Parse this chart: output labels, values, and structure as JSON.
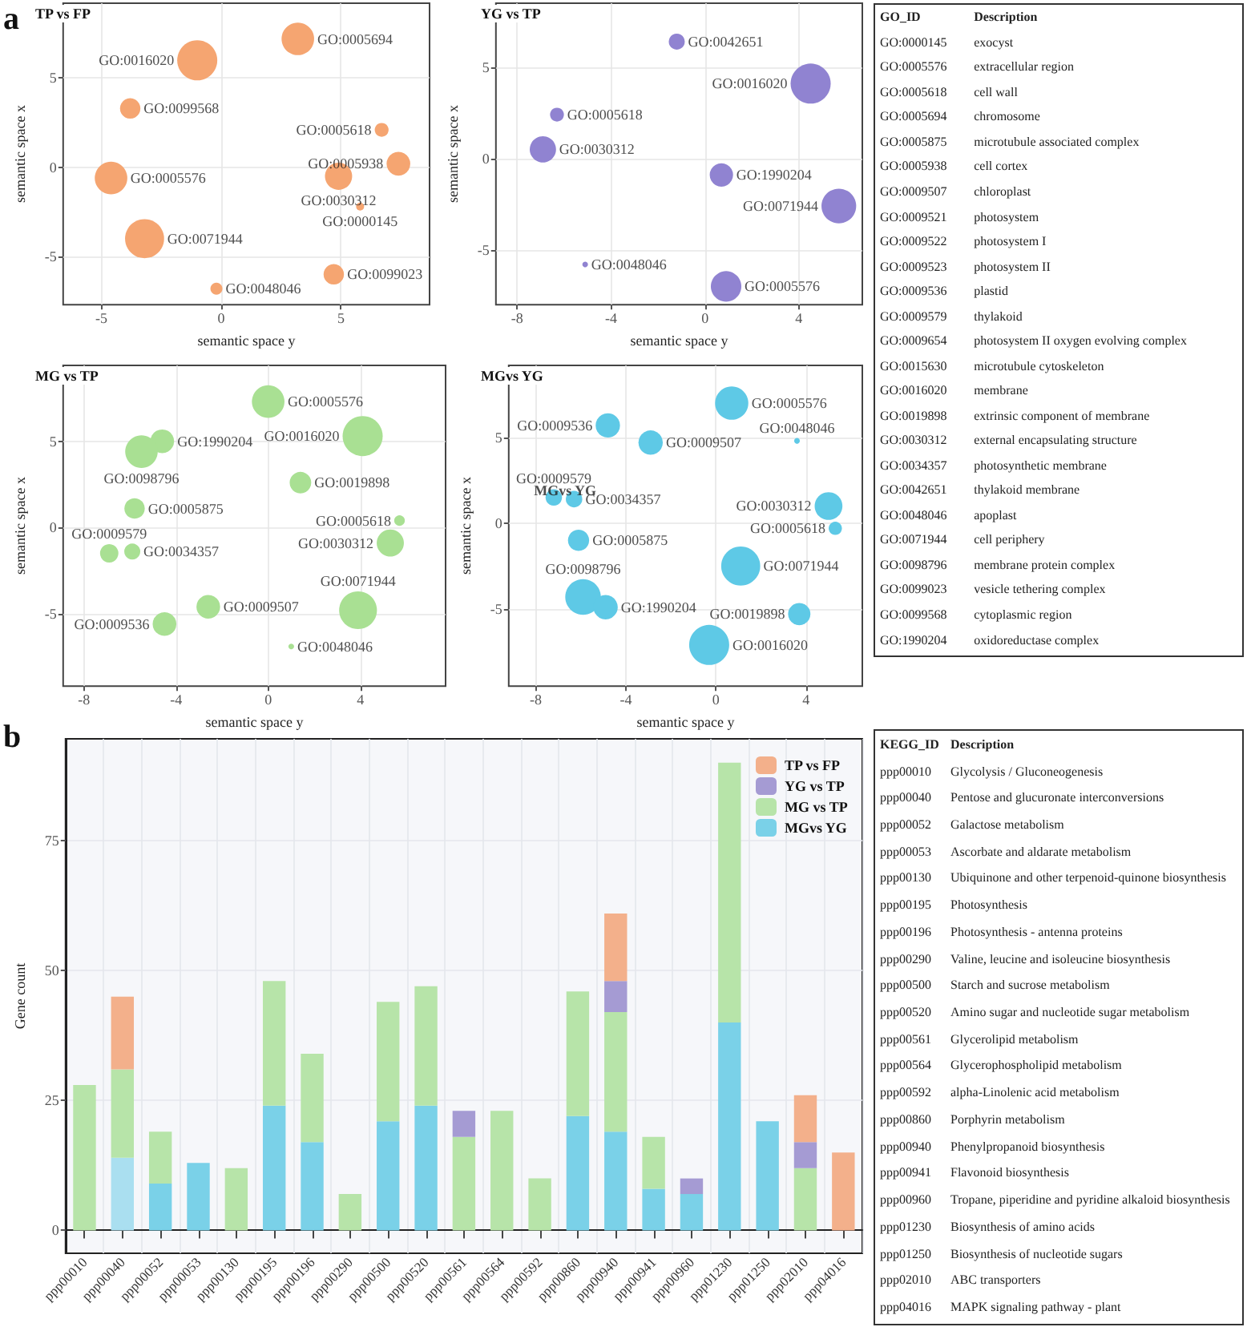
{
  "chart_data": [
    {
      "type": "bubble",
      "title": "TP vs FP",
      "xlabel": "semantic space y",
      "ylabel": "semantic space x",
      "color": "#f5a571",
      "grid": true,
      "x": [
        3.2,
        -1.0,
        -3.8,
        6.7,
        7.4,
        4.9,
        5.8,
        -4.6,
        -3.2,
        4.7,
        -0.2
      ],
      "values": [
        7.2,
        6.0,
        3.3,
        2.1,
        0.2,
        -0.5,
        -2.2,
        -0.6,
        -4.0,
        -6.0,
        -6.8
      ],
      "sizes": [
        0.66,
        1,
        0.26,
        0.12,
        0.35,
        0.46,
        0.04,
        0.66,
        0.95,
        0.26,
        0.09
      ],
      "xlim": [
        -6.6,
        8.7
      ],
      "ylim": [
        -7.7,
        9.2
      ],
      "xticks": [
        -5,
        0,
        5
      ],
      "yticks": [
        -5,
        0,
        5
      ],
      "annotations": [
        "a",
        {
          "text": "GO:0005694",
          "x": 3.2,
          "y": 7.2
        },
        {
          "text": "GO:0016020",
          "x": -1.0,
          "y": 6.0
        },
        {
          "text": "GO:0099568",
          "x": -3.8,
          "y": 3.3
        },
        {
          "text": "GO:0005618",
          "x": 6.7,
          "y": 2.1
        },
        {
          "text": "GO:0005938",
          "x": 7.4,
          "y": 0.2
        },
        {
          "text": "GO:0030312",
          "x": 4.9,
          "y": -0.5
        },
        {
          "text": "GO:0000145",
          "x": 5.8,
          "y": -2.2
        },
        {
          "text": "GO:0005576",
          "x": -4.6,
          "y": -0.6
        },
        {
          "text": "GO:0071944",
          "x": -3.2,
          "y": -4.0
        },
        {
          "text": "GO:0099023",
          "x": 4.7,
          "y": -6.0
        },
        {
          "text": "GO:0048046",
          "x": -0.2,
          "y": -6.8
        }
      ]
    },
    {
      "type": "bubble",
      "title": "YG vs TP",
      "xlabel": "semantic space y",
      "ylabel": "semantic space x",
      "color": "#9083d1",
      "grid": true,
      "x": [
        -1.2,
        4.5,
        -6.3,
        -6.9,
        0.7,
        5.7,
        -5.1,
        0.9
      ],
      "values": [
        6.4,
        4.1,
        2.4,
        0.5,
        -0.9,
        -2.6,
        -5.8,
        -7.0
      ],
      "sizes": [
        0.16,
        1,
        0.12,
        0.43,
        0.34,
        0.75,
        0.02,
        0.58
      ],
      "xlim": [
        -8.9,
        6.7
      ],
      "ylim": [
        -8.0,
        8.5
      ],
      "xticks": [
        -8,
        -4,
        0,
        4
      ],
      "yticks": [
        -5,
        0,
        5
      ],
      "annotations": [
        {
          "text": "GO:0042651",
          "x": -1.2,
          "y": 6.4
        },
        {
          "text": "GO:0016020",
          "x": 4.5,
          "y": 4.1
        },
        {
          "text": "GO:0005618",
          "x": -6.3,
          "y": 2.4
        },
        {
          "text": "GO:0030312",
          "x": -6.9,
          "y": 0.5
        },
        {
          "text": "GO:1990204",
          "x": 0.7,
          "y": -0.9
        },
        {
          "text": "GO:0071944",
          "x": 5.7,
          "y": -2.6
        },
        {
          "text": "GO:0048046",
          "x": -5.1,
          "y": -5.8
        },
        {
          "text": "GO:0005576",
          "x": 0.9,
          "y": -7.0
        }
      ]
    },
    {
      "type": "bubble",
      "title": "MG vs TP",
      "xlabel": "semantic space y",
      "ylabel": "semantic space x",
      "color": "#a9e093",
      "grid": true,
      "x": [
        0.0,
        4.1,
        -4.6,
        -5.5,
        1.4,
        -5.8,
        5.7,
        5.3,
        -5.9,
        -6.9,
        -2.6,
        3.9,
        -4.5,
        1.0
      ],
      "values": [
        7.3,
        5.3,
        5.0,
        4.4,
        2.6,
        1.1,
        0.4,
        -0.9,
        -1.4,
        -1.5,
        -4.6,
        -4.8,
        -5.6,
        -6.9
      ],
      "sizes": [
        0.66,
        1,
        0.35,
        0.66,
        0.29,
        0.26,
        0.07,
        0.46,
        0.16,
        0.21,
        0.35,
        0.89,
        0.35,
        0.02
      ],
      "xlim": [
        -8.9,
        7.7
      ],
      "ylim": [
        -9.2,
        9.4
      ],
      "xticks": [
        -8,
        -4,
        0,
        4
      ],
      "yticks": [
        -5,
        0,
        5
      ],
      "annotations": [
        {
          "text": "GO:0005576",
          "x": 0.0,
          "y": 7.3
        },
        {
          "text": "GO:0016020",
          "x": 4.1,
          "y": 5.3
        },
        {
          "text": "GO:1990204",
          "x": -4.6,
          "y": 5.0
        },
        {
          "text": "GO:0098796",
          "x": -5.5,
          "y": 4.4
        },
        {
          "text": "GO:0019898",
          "x": 1.4,
          "y": 2.6
        },
        {
          "text": "GO:0005875",
          "x": -5.8,
          "y": 1.1
        },
        {
          "text": "GO:0005618",
          "x": 5.7,
          "y": 0.4
        },
        {
          "text": "GO:0030312",
          "x": 5.3,
          "y": -0.9
        },
        {
          "text": "GO:0034357",
          "x": -5.9,
          "y": -1.4
        },
        {
          "text": "GO:0009579",
          "x": -6.9,
          "y": -1.5
        },
        {
          "text": "GO:0009507",
          "x": -2.6,
          "y": -4.6
        },
        {
          "text": "GO:0071944",
          "x": 3.9,
          "y": -4.8
        },
        {
          "text": "GO:0009536",
          "x": -4.5,
          "y": -5.6
        },
        {
          "text": "GO:0048046",
          "x": 1.0,
          "y": -6.9
        }
      ]
    },
    {
      "type": "bubble",
      "title": "MGvs YG",
      "xlabel": "semantic space y",
      "ylabel": "semantic space x",
      "color": "#5ec9e6",
      "grid": true,
      "x": [
        0.7,
        -4.8,
        -2.9,
        3.6,
        -7.2,
        -6.3,
        -6.1,
        5.0,
        5.3,
        1.1,
        -5.9,
        -4.9,
        3.7,
        -0.3
      ],
      "values": [
        7.0,
        5.7,
        4.7,
        4.8,
        1.5,
        1.4,
        -1.0,
        1.0,
        -0.3,
        -2.5,
        -4.3,
        -4.9,
        -5.3,
        -7.1
      ],
      "sizes": [
        0.69,
        0.37,
        0.37,
        0.02,
        0.17,
        0.17,
        0.28,
        0.48,
        0.11,
        0.95,
        0.79,
        0.37,
        0.31,
        1
      ],
      "xlim": [
        -9.2,
        6.5
      ],
      "ylim": [
        -9.5,
        9.2
      ],
      "xticks": [
        -8,
        -4,
        0,
        4
      ],
      "yticks": [
        -5,
        0,
        5
      ],
      "annotations": [
        {
          "text": "GO:0005576",
          "x": 0.7,
          "y": 7.0
        },
        {
          "text": "GO:0009536",
          "x": -4.8,
          "y": 5.7
        },
        {
          "text": "GO:0009507",
          "x": -2.9,
          "y": 4.7
        },
        {
          "text": "GO:0048046",
          "x": 3.6,
          "y": 4.8
        },
        {
          "text": "GO:0009579",
          "x": -7.2,
          "y": 1.5
        },
        {
          "text": "GO:0034357",
          "x": -6.3,
          "y": 1.4
        },
        {
          "text": "GO:0005875",
          "x": -6.1,
          "y": -1.0
        },
        {
          "text": "GO:0030312",
          "x": 5.0,
          "y": 1.0
        },
        {
          "text": "GO:0005618",
          "x": 5.3,
          "y": -0.3
        },
        {
          "text": "GO:0071944",
          "x": 1.1,
          "y": -2.5
        },
        {
          "text": "GO:0098796",
          "x": -5.9,
          "y": -4.3
        },
        {
          "text": "GO:1990204",
          "x": -4.9,
          "y": -4.9
        },
        {
          "text": "GO:0019898",
          "x": 3.7,
          "y": -5.3
        },
        {
          "text": "GO:0016020",
          "x": -0.3,
          "y": -7.1
        },
        {
          "text": "MGvs YG",
          "x": -6.7,
          "y": 1.9
        }
      ]
    },
    {
      "type": "bar",
      "stacked": true,
      "ylabel": "Gene count",
      "grid": true,
      "legend": "top right",
      "categories": [
        "ppp00010",
        "ppp00040",
        "ppp00052",
        "ppp00053",
        "ppp00130",
        "ppp00195",
        "ppp00196",
        "ppp00290",
        "ppp00500",
        "ppp00520",
        "ppp00561",
        "ppp00564",
        "ppp00592",
        "ppp00860",
        "ppp00940",
        "ppp00941",
        "ppp00960",
        "ppp01230",
        "ppp01250",
        "ppp02010",
        "ppp04016"
      ],
      "ylim": [
        -4.4,
        94.6
      ],
      "yticks": [
        0,
        25,
        50,
        75
      ],
      "annotations": [
        "b"
      ],
      "series": [
        {
          "name": "MGvs YG",
          "color": "#7ad1e8",
          "colors": [
            "#7ad1e8",
            "#aadff0",
            "#7ad1e8",
            "#7ad1e8",
            "#7ad1e8",
            "#7ad1e8",
            "#7ad1e8",
            "#7ad1e8",
            "#7ad1e8",
            "#7ad1e8",
            "#7ad1e8",
            "#7ad1e8",
            "#7ad1e8",
            "#7ad1e8",
            "#7ad1e8",
            "#7ad1e8",
            "#7ad1e8",
            "#7ad1e8",
            "#7ad1e8",
            "#7ad1e8",
            "#7ad1e8"
          ],
          "values": [
            null,
            14,
            9,
            13,
            null,
            24,
            17,
            null,
            21,
            24,
            null,
            null,
            null,
            22,
            19,
            8,
            7,
            40,
            21,
            null,
            null
          ]
        },
        {
          "name": "MG vs TP",
          "color": "#b7e4a9",
          "values": [
            28,
            17,
            10,
            null,
            12,
            24,
            17,
            7,
            23,
            23,
            18,
            23,
            10,
            24,
            23,
            10,
            null,
            50,
            null,
            12,
            null
          ]
        },
        {
          "name": "YG vs TP",
          "color": "#a59bd3",
          "values": [
            null,
            null,
            null,
            null,
            null,
            null,
            null,
            null,
            null,
            null,
            5,
            null,
            null,
            null,
            6,
            null,
            3,
            null,
            null,
            5,
            null
          ]
        },
        {
          "name": "TP vs FP",
          "color": "#f3b08b",
          "values": [
            null,
            14,
            null,
            null,
            null,
            null,
            null,
            null,
            null,
            null,
            null,
            null,
            null,
            null,
            13,
            null,
            null,
            null,
            null,
            9,
            15
          ]
        }
      ]
    },
    {
      "type": "other",
      "categories": [
        "GO_ID",
        "Description"
      ],
      "cell_labels": [
        [
          "GO:0000145",
          "exocyst"
        ],
        [
          "GO:0005576",
          "extracellular region"
        ],
        [
          "GO:0005618",
          "cell wall"
        ],
        [
          "GO:0005694",
          "chromosome"
        ],
        [
          "GO:0005875",
          "microtubule associated complex"
        ],
        [
          "GO:0005938",
          "cell cortex"
        ],
        [
          "GO:0009507",
          "chloroplast"
        ],
        [
          "GO:0009521",
          "photosystem"
        ],
        [
          "GO:0009522",
          "photosystem I"
        ],
        [
          "GO:0009523",
          "photosystem II"
        ],
        [
          "GO:0009536",
          "plastid"
        ],
        [
          "GO:0009579",
          "thylakoid"
        ],
        [
          "GO:0009654",
          "photosystem II oxygen evolving complex"
        ],
        [
          "GO:0015630",
          "microtubule cytoskeleton"
        ],
        [
          "GO:0016020",
          "membrane"
        ],
        [
          "GO:0019898",
          "extrinsic component of membrane"
        ],
        [
          "GO:0030312",
          "external encapsulating structure"
        ],
        [
          "GO:0034357",
          "photosynthetic membrane"
        ],
        [
          "GO:0042651",
          "thylakoid membrane"
        ],
        [
          "GO:0048046",
          "apoplast"
        ],
        [
          "GO:0071944",
          "cell periphery"
        ],
        [
          "GO:0098796",
          "membrane protein complex"
        ],
        [
          "GO:0099023",
          "vesicle tethering complex"
        ],
        [
          "GO:0099568",
          "cytoplasmic region"
        ],
        [
          "GO:1990204",
          "oxidoreductase complex"
        ]
      ]
    },
    {
      "type": "other",
      "categories": [
        "KEGG_ID",
        "Description"
      ],
      "cell_labels": [
        [
          "ppp00010",
          "Glycolysis / Gluconeogenesis"
        ],
        [
          "ppp00040",
          "Pentose and glucuronate interconversions"
        ],
        [
          "ppp00052",
          "Galactose metabolism"
        ],
        [
          "ppp00053",
          "Ascorbate and aldarate metabolism"
        ],
        [
          "ppp00130",
          "Ubiquinone and other terpenoid-quinone biosynthesis"
        ],
        [
          "ppp00195",
          "Photosynthesis"
        ],
        [
          "ppp00196",
          "Photosynthesis - antenna proteins"
        ],
        [
          "ppp00290",
          "Valine, leucine and isoleucine biosynthesis"
        ],
        [
          "ppp00500",
          "Starch and sucrose metabolism"
        ],
        [
          "ppp00520",
          "Amino sugar and nucleotide sugar metabolism"
        ],
        [
          "ppp00561",
          "Glycerolipid metabolism"
        ],
        [
          "ppp00564",
          "Glycerophospholipid metabolism"
        ],
        [
          "ppp00592",
          "alpha-Linolenic acid metabolism"
        ],
        [
          "ppp00860",
          "Porphyrin metabolism"
        ],
        [
          "ppp00940",
          "Phenylpropanoid biosynthesis"
        ],
        [
          "ppp00941",
          "Flavonoid biosynthesis"
        ],
        [
          "ppp00960",
          "Tropane, piperidine and pyridine alkaloid biosynthesis"
        ],
        [
          "ppp01230",
          "Biosynthesis of amino acids"
        ],
        [
          "ppp01250",
          "Biosynthesis of nucleotide sugars"
        ],
        [
          "ppp02010",
          "ABC transporters"
        ],
        [
          "ppp04016",
          "MAPK signaling pathway - plant"
        ]
      ]
    }
  ]
}
